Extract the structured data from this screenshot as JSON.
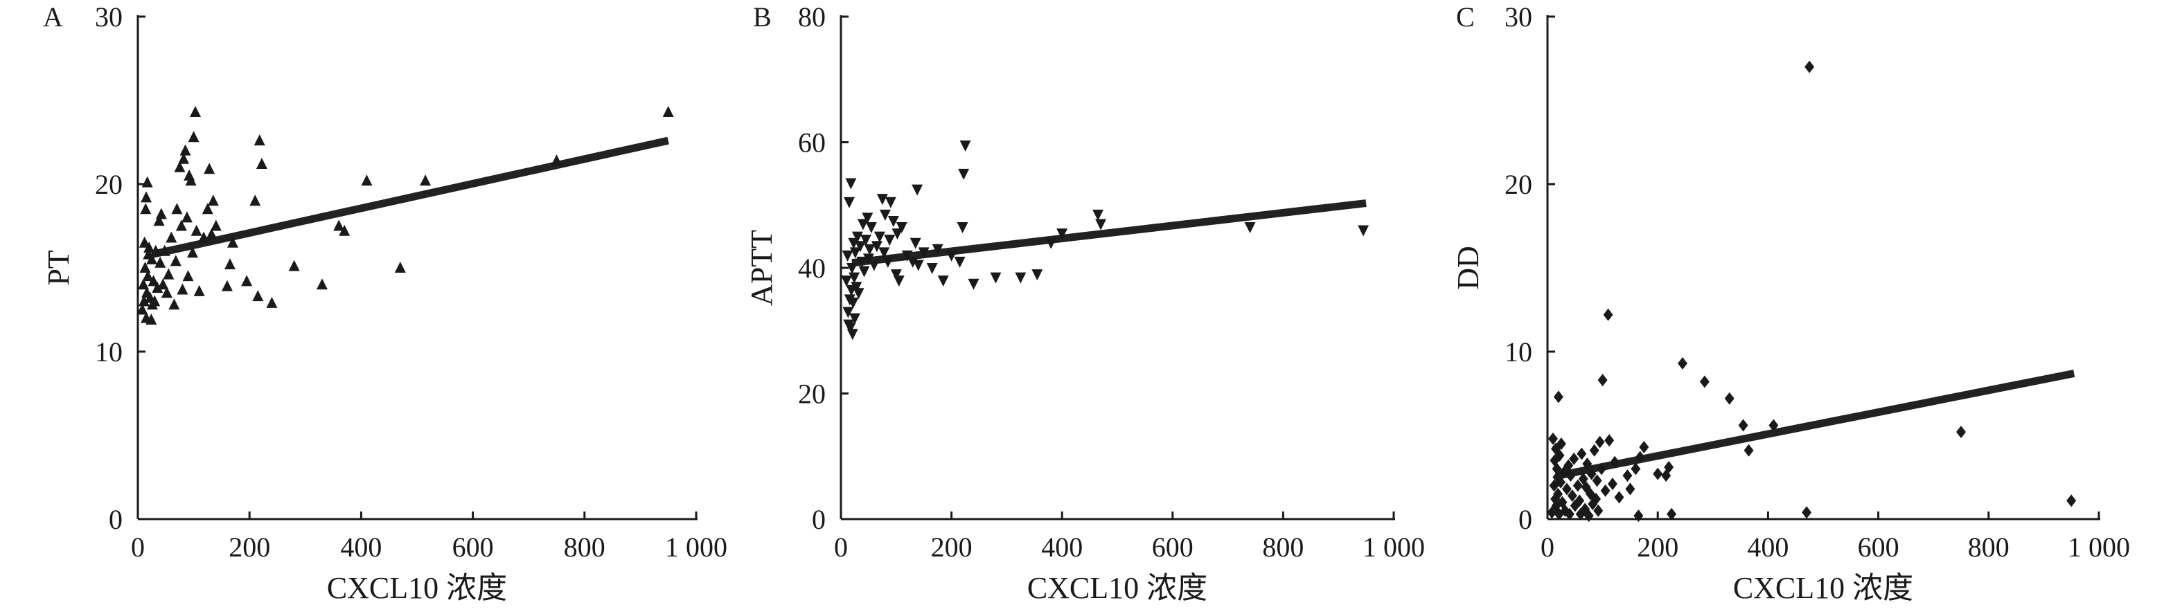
{
  "chart_data": [
    {
      "type": "scatter",
      "panel_label": "A",
      "xlabel": "CXCL10 浓度",
      "ylabel": "PT",
      "xlim": [
        0,
        1000
      ],
      "ylim": [
        0,
        30
      ],
      "x_ticks": [
        "0",
        "200",
        "400",
        "600",
        "800",
        "1 000"
      ],
      "y_ticks": [
        "0",
        "10",
        "20",
        "30"
      ],
      "marker": "triangle-up",
      "points": [
        [
          8,
          12.5
        ],
        [
          10,
          14.0
        ],
        [
          11,
          13.0
        ],
        [
          12,
          16.5
        ],
        [
          13,
          15.0
        ],
        [
          14,
          18.5
        ],
        [
          15,
          12.0
        ],
        [
          15,
          19.2
        ],
        [
          16,
          13.5
        ],
        [
          17,
          20.1
        ],
        [
          18,
          14.5
        ],
        [
          19,
          15.8
        ],
        [
          20,
          16.2
        ],
        [
          22,
          13.2
        ],
        [
          24,
          11.9
        ],
        [
          25,
          15.5
        ],
        [
          26,
          12.8
        ],
        [
          28,
          14.2
        ],
        [
          30,
          13.0
        ],
        [
          32,
          16.0
        ],
        [
          35,
          13.8
        ],
        [
          38,
          17.8
        ],
        [
          40,
          15.3
        ],
        [
          42,
          18.2
        ],
        [
          45,
          14.0
        ],
        [
          48,
          16.0
        ],
        [
          52,
          13.5
        ],
        [
          55,
          14.6
        ],
        [
          60,
          16.8
        ],
        [
          65,
          12.8
        ],
        [
          68,
          15.4
        ],
        [
          70,
          18.5
        ],
        [
          75,
          21.0
        ],
        [
          78,
          17.5
        ],
        [
          80,
          13.7
        ],
        [
          82,
          21.5
        ],
        [
          85,
          22.0
        ],
        [
          88,
          18.0
        ],
        [
          90,
          14.5
        ],
        [
          92,
          20.5
        ],
        [
          95,
          20.2
        ],
        [
          98,
          15.9
        ],
        [
          100,
          22.8
        ],
        [
          103,
          24.3
        ],
        [
          105,
          17.2
        ],
        [
          110,
          13.6
        ],
        [
          118,
          16.8
        ],
        [
          125,
          18.5
        ],
        [
          128,
          20.9
        ],
        [
          132,
          17.0
        ],
        [
          135,
          19.0
        ],
        [
          140,
          17.5
        ],
        [
          160,
          13.9
        ],
        [
          165,
          15.2
        ],
        [
          170,
          16.5
        ],
        [
          195,
          14.2
        ],
        [
          210,
          19.0
        ],
        [
          215,
          13.3
        ],
        [
          218,
          22.6
        ],
        [
          222,
          21.2
        ],
        [
          240,
          12.9
        ],
        [
          280,
          15.1
        ],
        [
          330,
          14.0
        ],
        [
          360,
          17.5
        ],
        [
          370,
          17.2
        ],
        [
          410,
          20.2
        ],
        [
          470,
          15.0
        ],
        [
          515,
          20.2
        ],
        [
          750,
          21.4
        ],
        [
          950,
          24.3
        ]
      ],
      "fit_line": {
        "x": [
          25,
          950
        ],
        "y": [
          15.8,
          22.6
        ]
      }
    },
    {
      "type": "scatter",
      "panel_label": "B",
      "xlabel": "CXCL10 浓度",
      "ylabel": "APTT",
      "xlim": [
        0,
        1000
      ],
      "ylim": [
        0,
        80
      ],
      "x_ticks": [
        "0",
        "200",
        "400",
        "600",
        "800",
        "1 000"
      ],
      "y_ticks": [
        "0",
        "20",
        "40",
        "60",
        "80"
      ],
      "marker": "triangle-down",
      "points": [
        [
          10,
          38.0
        ],
        [
          12,
          42.0
        ],
        [
          13,
          33.0
        ],
        [
          14,
          31.0
        ],
        [
          15,
          50.5
        ],
        [
          16,
          35.0
        ],
        [
          17,
          30.5
        ],
        [
          18,
          53.5
        ],
        [
          19,
          36.5
        ],
        [
          20,
          40.0
        ],
        [
          21,
          29.5
        ],
        [
          22,
          34.5
        ],
        [
          23,
          44.0
        ],
        [
          24,
          38.5
        ],
        [
          25,
          32.0
        ],
        [
          26,
          42.5
        ],
        [
          28,
          37.0
        ],
        [
          30,
          45.0
        ],
        [
          32,
          36.0
        ],
        [
          35,
          43.5
        ],
        [
          38,
          41.0
        ],
        [
          40,
          47.0
        ],
        [
          42,
          39.5
        ],
        [
          45,
          44.5
        ],
        [
          48,
          48.0
        ],
        [
          50,
          41.5
        ],
        [
          52,
          43.0
        ],
        [
          55,
          46.5
        ],
        [
          60,
          40.5
        ],
        [
          65,
          43.5
        ],
        [
          70,
          45.0
        ],
        [
          75,
          51.0
        ],
        [
          78,
          42.5
        ],
        [
          80,
          48.5
        ],
        [
          85,
          41.0
        ],
        [
          88,
          44.5
        ],
        [
          90,
          50.5
        ],
        [
          95,
          47.5
        ],
        [
          100,
          39.0
        ],
        [
          102,
          45.5
        ],
        [
          105,
          38.0
        ],
        [
          110,
          46.5
        ],
        [
          120,
          42.0
        ],
        [
          130,
          41.0
        ],
        [
          135,
          44.0
        ],
        [
          138,
          52.5
        ],
        [
          140,
          40.5
        ],
        [
          150,
          42.5
        ],
        [
          165,
          40.0
        ],
        [
          175,
          43.0
        ],
        [
          185,
          38.0
        ],
        [
          200,
          42.0
        ],
        [
          215,
          41.0
        ],
        [
          220,
          46.5
        ],
        [
          222,
          55.0
        ],
        [
          225,
          59.5
        ],
        [
          240,
          37.5
        ],
        [
          280,
          38.5
        ],
        [
          325,
          38.5
        ],
        [
          355,
          39.0
        ],
        [
          380,
          44.0
        ],
        [
          400,
          45.5
        ],
        [
          465,
          48.5
        ],
        [
          470,
          47.0
        ],
        [
          740,
          46.5
        ],
        [
          945,
          46.0
        ]
      ],
      "fit_line": {
        "x": [
          20,
          950
        ],
        "y": [
          40.8,
          50.3
        ]
      }
    },
    {
      "type": "scatter",
      "panel_label": "C",
      "xlabel": "CXCL10 浓度",
      "ylabel": "DD",
      "xlim": [
        0,
        1000
      ],
      "ylim": [
        0,
        30
      ],
      "x_ticks": [
        "0",
        "200",
        "400",
        "600",
        "800",
        "1 000"
      ],
      "y_ticks": [
        "0",
        "10",
        "20",
        "30"
      ],
      "marker": "diamond",
      "points": [
        [
          8,
          0.4
        ],
        [
          10,
          4.8
        ],
        [
          12,
          2.0
        ],
        [
          13,
          3.5
        ],
        [
          14,
          1.2
        ],
        [
          15,
          4.2
        ],
        [
          16,
          0.8
        ],
        [
          17,
          3.0
        ],
        [
          18,
          2.5
        ],
        [
          19,
          1.5
        ],
        [
          20,
          7.3
        ],
        [
          21,
          0.3
        ],
        [
          22,
          3.8
        ],
        [
          24,
          2.2
        ],
        [
          25,
          4.5
        ],
        [
          27,
          1.0
        ],
        [
          30,
          2.8
        ],
        [
          32,
          0.5
        ],
        [
          35,
          1.8
        ],
        [
          38,
          3.2
        ],
        [
          40,
          0.3
        ],
        [
          42,
          2.6
        ],
        [
          45,
          1.4
        ],
        [
          48,
          3.6
        ],
        [
          50,
          0.8
        ],
        [
          55,
          2.0
        ],
        [
          58,
          1.1
        ],
        [
          60,
          0.3
        ],
        [
          62,
          3.9
        ],
        [
          65,
          2.4
        ],
        [
          68,
          0.6
        ],
        [
          70,
          1.9
        ],
        [
          72,
          3.3
        ],
        [
          75,
          0.2
        ],
        [
          78,
          1.5
        ],
        [
          80,
          2.7
        ],
        [
          82,
          0.9
        ],
        [
          85,
          4.1
        ],
        [
          88,
          1.2
        ],
        [
          90,
          2.3
        ],
        [
          92,
          0.5
        ],
        [
          95,
          4.6
        ],
        [
          98,
          3.0
        ],
        [
          100,
          8.3
        ],
        [
          105,
          1.7
        ],
        [
          110,
          12.2
        ],
        [
          112,
          4.7
        ],
        [
          118,
          2.1
        ],
        [
          122,
          3.4
        ],
        [
          130,
          1.3
        ],
        [
          145,
          2.6
        ],
        [
          150,
          1.8
        ],
        [
          160,
          3.0
        ],
        [
          165,
          0.2
        ],
        [
          168,
          3.7
        ],
        [
          175,
          4.3
        ],
        [
          200,
          2.7
        ],
        [
          215,
          2.6
        ],
        [
          220,
          3.1
        ],
        [
          225,
          0.3
        ],
        [
          245,
          9.3
        ],
        [
          285,
          8.2
        ],
        [
          330,
          7.2
        ],
        [
          355,
          5.6
        ],
        [
          365,
          4.1
        ],
        [
          410,
          5.6
        ],
        [
          470,
          0.4
        ],
        [
          475,
          27.0
        ],
        [
          750,
          5.2
        ],
        [
          950,
          1.1
        ]
      ],
      "fit_line": {
        "x": [
          20,
          955
        ],
        "y": [
          2.6,
          8.7
        ]
      }
    }
  ]
}
